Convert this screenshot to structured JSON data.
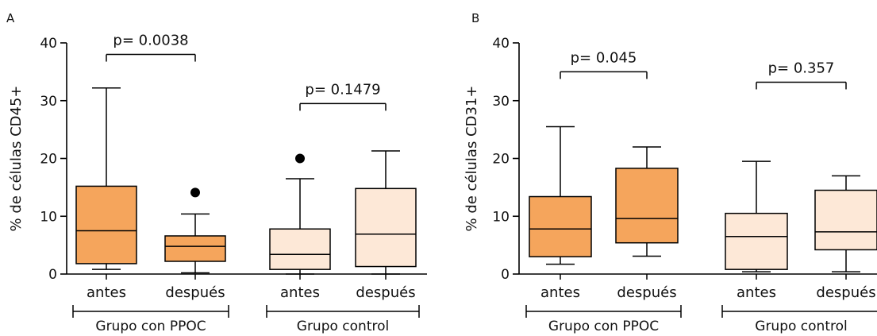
{
  "colors": {
    "ppoc_fill": "#F5A55C",
    "control_fill": "#FDE8D7",
    "stroke": "#000000"
  },
  "chart_data": [
    {
      "type": "boxplot",
      "panel_label": "A",
      "ylabel": "% de células CD45+",
      "ylim": [
        0,
        40
      ],
      "yticks": [
        "0",
        "10",
        "20",
        "30",
        "40"
      ],
      "categories": [
        "antes",
        "después",
        "antes",
        "después"
      ],
      "groups": [
        {
          "label": "Grupo con PPOC",
          "members": [
            0,
            1
          ]
        },
        {
          "label": "Grupo control",
          "members": [
            2,
            3
          ]
        }
      ],
      "boxes": [
        {
          "category": "antes",
          "group": "Grupo con PPOC",
          "min": 0.8,
          "q1": 1.8,
          "median": 7.5,
          "q3": 15.2,
          "max": 32.2,
          "outliers": []
        },
        {
          "category": "después",
          "group": "Grupo con PPOC",
          "min": 0.2,
          "q1": 2.2,
          "median": 4.8,
          "q3": 6.6,
          "max": 10.4,
          "outliers": [
            14.1
          ]
        },
        {
          "category": "antes",
          "group": "Grupo control",
          "min": 0.0,
          "q1": 0.8,
          "median": 3.4,
          "q3": 7.8,
          "max": 16.5,
          "outliers": [
            20.0
          ]
        },
        {
          "category": "después",
          "group": "Grupo control",
          "min": 0.0,
          "q1": 1.3,
          "median": 6.9,
          "q3": 14.8,
          "max": 21.3,
          "outliers": []
        }
      ],
      "annotations": [
        {
          "text": "p= 0.0038",
          "from": 0,
          "to": 1,
          "y": 38.0
        },
        {
          "text": "p= 0.1479",
          "from": 2,
          "to": 3,
          "y": 29.5
        }
      ]
    },
    {
      "type": "boxplot",
      "panel_label": "B",
      "ylabel": "% de células CD31+",
      "ylim": [
        0,
        40
      ],
      "yticks": [
        "0",
        "10",
        "20",
        "30",
        "40"
      ],
      "categories": [
        "antes",
        "después",
        "antes",
        "después"
      ],
      "groups": [
        {
          "label": "Grupo con PPOC",
          "members": [
            0,
            1
          ]
        },
        {
          "label": "Grupo control",
          "members": [
            2,
            3
          ]
        }
      ],
      "boxes": [
        {
          "category": "antes",
          "group": "Grupo con PPOC",
          "min": 1.7,
          "q1": 3.0,
          "median": 7.8,
          "q3": 13.4,
          "max": 25.5,
          "outliers": []
        },
        {
          "category": "después",
          "group": "Grupo con PPOC",
          "min": 3.1,
          "q1": 5.4,
          "median": 9.6,
          "q3": 18.3,
          "max": 22.0,
          "outliers": []
        },
        {
          "category": "antes",
          "group": "Grupo control",
          "min": 0.4,
          "q1": 0.8,
          "median": 6.5,
          "q3": 10.5,
          "max": 19.5,
          "outliers": []
        },
        {
          "category": "después",
          "group": "Grupo control",
          "min": 0.4,
          "q1": 4.2,
          "median": 7.3,
          "q3": 14.5,
          "max": 17.0,
          "outliers": []
        }
      ],
      "annotations": [
        {
          "text": "p= 0.045",
          "from": 0,
          "to": 1,
          "y": 35.0
        },
        {
          "text": "p= 0.357",
          "from": 2,
          "to": 3,
          "y": 33.2
        }
      ]
    }
  ]
}
